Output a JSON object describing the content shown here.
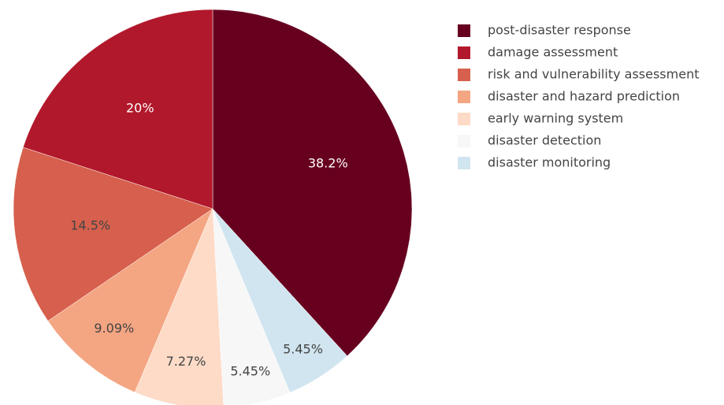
{
  "chart_data": {
    "type": "pie",
    "title": "",
    "slices": [
      {
        "label": "post-disaster response",
        "value": 38.2,
        "text": "38.2%",
        "color": "#67001f",
        "text_color": "#ffffff"
      },
      {
        "label": "disaster monitoring",
        "value": 5.45,
        "text": "5.45%",
        "color": "#d1e5f0",
        "text_color": "#444444"
      },
      {
        "label": "disaster detection",
        "value": 5.45,
        "text": "5.45%",
        "color": "#f7f7f7",
        "text_color": "#444444"
      },
      {
        "label": "early warning system",
        "value": 7.27,
        "text": "7.27%",
        "color": "#fddbc7",
        "text_color": "#444444"
      },
      {
        "label": "disaster and hazard prediction",
        "value": 9.09,
        "text": "9.09%",
        "color": "#f4a582",
        "text_color": "#444444"
      },
      {
        "label": "risk and vulnerability assessment",
        "value": 14.5,
        "text": "14.5%",
        "color": "#d6604d",
        "text_color": "#444444"
      },
      {
        "label": "damage assessment",
        "value": 20,
        "text": "20%",
        "color": "#b2182b",
        "text_color": "#ffffff"
      }
    ],
    "legend": {
      "placement": "top-right",
      "order": [
        "post-disaster response",
        "damage assessment",
        "risk and vulnerability assessment",
        "disaster and hazard prediction",
        "early warning system",
        "disaster detection",
        "disaster monitoring"
      ]
    }
  }
}
